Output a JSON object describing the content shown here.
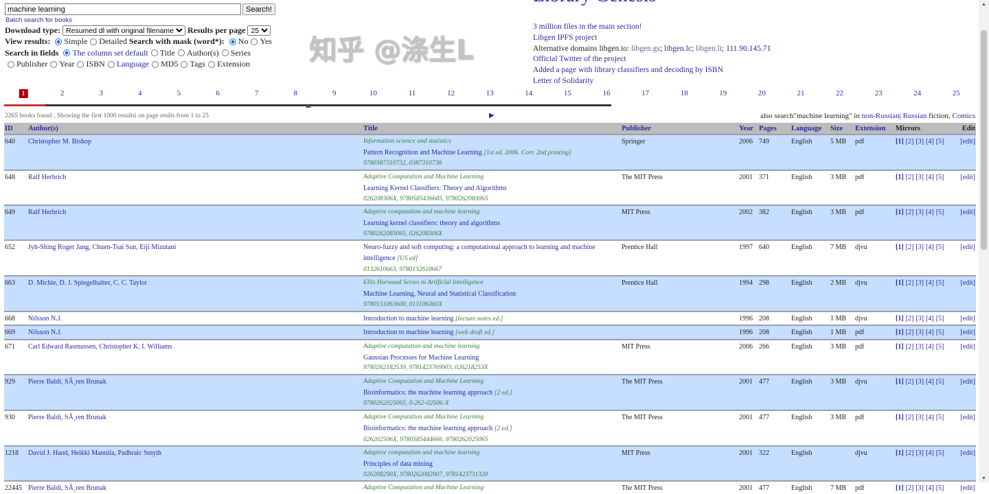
{
  "search": {
    "value": "machine learning",
    "button": "Search!",
    "batch": "Batch search for books"
  },
  "options": {
    "download_label": "Download type:",
    "download_value": "Resumed dl with original filename",
    "rpp_label": "Results per page",
    "rpp_value": "25",
    "view_label": "View results:",
    "view_simple": "Simple",
    "view_detailed": "Detailed",
    "mask_label": "Search with mask (word*):",
    "mask_no": "No",
    "mask_yes": "Yes",
    "fields_label": "Search in fields",
    "fields": [
      {
        "label": "The column set default",
        "checked": true,
        "link": true
      },
      {
        "label": "Title"
      },
      {
        "label": "Author(s)"
      },
      {
        "label": "Series"
      },
      {
        "label": "Publisher"
      },
      {
        "label": "Year"
      },
      {
        "label": "ISBN"
      },
      {
        "label": "Language",
        "link": true
      },
      {
        "label": "MD5"
      },
      {
        "label": "Tags"
      },
      {
        "label": "Extension"
      }
    ]
  },
  "site_title": "Library Genesis",
  "news": {
    "l1": "3 million files in the main section!",
    "l2": "Libgen IPFS project",
    "alt_prefix": "Alternative domains libgen.io:",
    "alt1": "libgen.gs",
    "alt2": "libgen.lc",
    "alt3": "libgen.li",
    "alt4": "111.90.145.71",
    "l4": "Official Twitter of the project",
    "l5": "Added a page with library classifiers and decoding by ISBN",
    "l6": "Letter of Solidarity"
  },
  "pager": {
    "current": 1,
    "pages": [
      "1",
      "2",
      "3",
      "4",
      "5",
      "6",
      "7",
      "8",
      "9",
      "10",
      "11",
      "12",
      "13",
      "14",
      "15",
      "16",
      "17",
      "18",
      "19",
      "20",
      "21",
      "22",
      "23",
      "24",
      "25"
    ],
    "next": "▶"
  },
  "found": "2265 books found , Showing the first 1000 results| on page reults from 1 to 25",
  "also": {
    "prefix": "also search\"machine learning\" in",
    "l1": "non-Russian",
    "sep": "|",
    "l2": "Russian",
    "mid": "fiction,",
    "l3": "Comics"
  },
  "columns": [
    "ID",
    "Author(s)",
    "Title",
    "Publisher",
    "Year",
    "Pages",
    "Language",
    "Size",
    "Extension",
    "Mirrors",
    "Edit"
  ],
  "mirrors": [
    "[1]",
    "[2]",
    "[3]",
    "[4]",
    "[5]"
  ],
  "edit_label": "[edit]",
  "rows": [
    {
      "id": "640",
      "authors": "Christopher M. Bishop",
      "series": "Information science and statistics",
      "title": "Pattern Recognition and Machine Learning",
      "edition": "[1st ed. 2006. Corr. 2nd printing]",
      "isbn": "9780387310732, 0387310738",
      "publisher": "Springer",
      "year": "2006",
      "pages": "749",
      "language": "English",
      "size": "5 MB",
      "ext": "pdf"
    },
    {
      "id": "648",
      "authors": "Ralf Herbrich",
      "series": "Adaptive Computation and Machine Learning",
      "title": "Learning Kernel Classifiers: Theory and Algorithms",
      "edition": "",
      "isbn": "026208306X, 9780585436685, 9780262083065",
      "publisher": "The MIT Press",
      "year": "2001",
      "pages": "371",
      "language": "English",
      "size": "3 MB",
      "ext": "pdf"
    },
    {
      "id": "649",
      "authors": "Ralf Herbrich",
      "series": "Adaptive computation and machine learning",
      "title": "Learning kernel classifiers: theory and algorithms",
      "edition": "",
      "isbn": "9780262083065, 026208306X",
      "publisher": "MIT Press",
      "year": "2002",
      "pages": "382",
      "language": "English",
      "size": "3 MB",
      "ext": "pdf"
    },
    {
      "id": "652",
      "authors": "Jyh-Shing Roger Jang, Chuen-Tsai Sun, Eiji Mizutani",
      "series": "",
      "title": "Neuro-fuzzy and soft computing: a computational approach to learning and machine intelligence",
      "edition": "[US ed]",
      "isbn": "0132610663, 9780132610667",
      "publisher": "Prentice Hall",
      "year": "1997",
      "pages": "640",
      "language": "English",
      "size": "7 MB",
      "ext": "djvu"
    },
    {
      "id": "663",
      "authors": "D. Michie, D. J. Spiegelhalter, C. C. Taylor",
      "series": "Ellis Horwood Series in Artificial Intelligence",
      "title": "Machine Learning, Neural and Statistical Classification",
      "edition": "",
      "isbn": "9780131063600, 013106360X",
      "publisher": "Prentice Hall",
      "year": "1994",
      "pages": "298",
      "language": "English",
      "size": "2 MB",
      "ext": "djvu"
    },
    {
      "id": "668",
      "authors": "Nilsson N.J.",
      "series": "",
      "title": "Introduction to machine learning",
      "edition": "[lecture notes ed.]",
      "isbn": "",
      "publisher": "",
      "year": "1996",
      "pages": "208",
      "language": "English",
      "size": "1 MB",
      "ext": "djvu"
    },
    {
      "id": "669",
      "authors": "Nilsson N.J.",
      "series": "",
      "title": "Introduction to machine learning",
      "edition": "[web draft ed.]",
      "isbn": "",
      "publisher": "",
      "year": "1996",
      "pages": "208",
      "language": "English",
      "size": "1 MB",
      "ext": "pdf"
    },
    {
      "id": "671",
      "authors": "Carl Edward Rasmussen, Christopher K. I. Williams",
      "series": "Adaptive computation and machine learning",
      "title": "Gaussian Processes for Machine Learning",
      "edition": "",
      "isbn": "9780262182539, 9781423769903, 026218253X",
      "publisher": "MIT Press",
      "year": "2006",
      "pages": "266",
      "language": "English",
      "size": "3 MB",
      "ext": "pdf"
    },
    {
      "id": "929",
      "authors": "Pierre Baldi, SÃ¸ren Brunak",
      "series": "Adaptive Computation and Machine Learning",
      "title": "Bioinformatics: the machine learning approach",
      "edition": "[2 ed.]",
      "isbn": "9780262025065, 0-262-02506-X",
      "publisher": "The MIT Press",
      "year": "2001",
      "pages": "477",
      "language": "English",
      "size": "3 MB",
      "ext": "djvu"
    },
    {
      "id": "930",
      "authors": "Pierre Baldi, SÃ¸ren Brunak",
      "series": "Adaptive Computation and Machine Learning",
      "title": "Bioinformatics: the machine learning approach",
      "edition": "[2 ed.]",
      "isbn": "026202506X, 9780585444666, 9780262025065",
      "publisher": "The MIT Press",
      "year": "2001",
      "pages": "477",
      "language": "English",
      "size": "3 MB",
      "ext": "pdf"
    },
    {
      "id": "1218",
      "authors": "David J. Hand, Heikki Mannila, Padhraic Smyth",
      "series": "Adaptive computation and machine learning",
      "title": "Principles of data mining",
      "edition": "",
      "isbn": "026208290X, 9780262082907, 9781423731320",
      "publisher": "MIT Press",
      "year": "2001",
      "pages": "322",
      "language": "English",
      "size": "",
      "ext": "djvu"
    },
    {
      "id": "22445",
      "authors": "Pierre Baldi, SÃ¸ren Brunak",
      "series": "Adaptive Computation and Machine Learning",
      "title": "",
      "edition": "",
      "isbn": "",
      "publisher": "The MIT Press",
      "year": "2001",
      "pages": "477",
      "language": "English",
      "size": "7 MB",
      "ext": "pdf"
    }
  ],
  "watermark": "知乎 @涤生L",
  "colors": {
    "link": "#2a2aa0",
    "row_alt": "#c6deff",
    "header": "#bcbcbc",
    "series": "#3b7a3b",
    "current_page": "#aa0000"
  }
}
